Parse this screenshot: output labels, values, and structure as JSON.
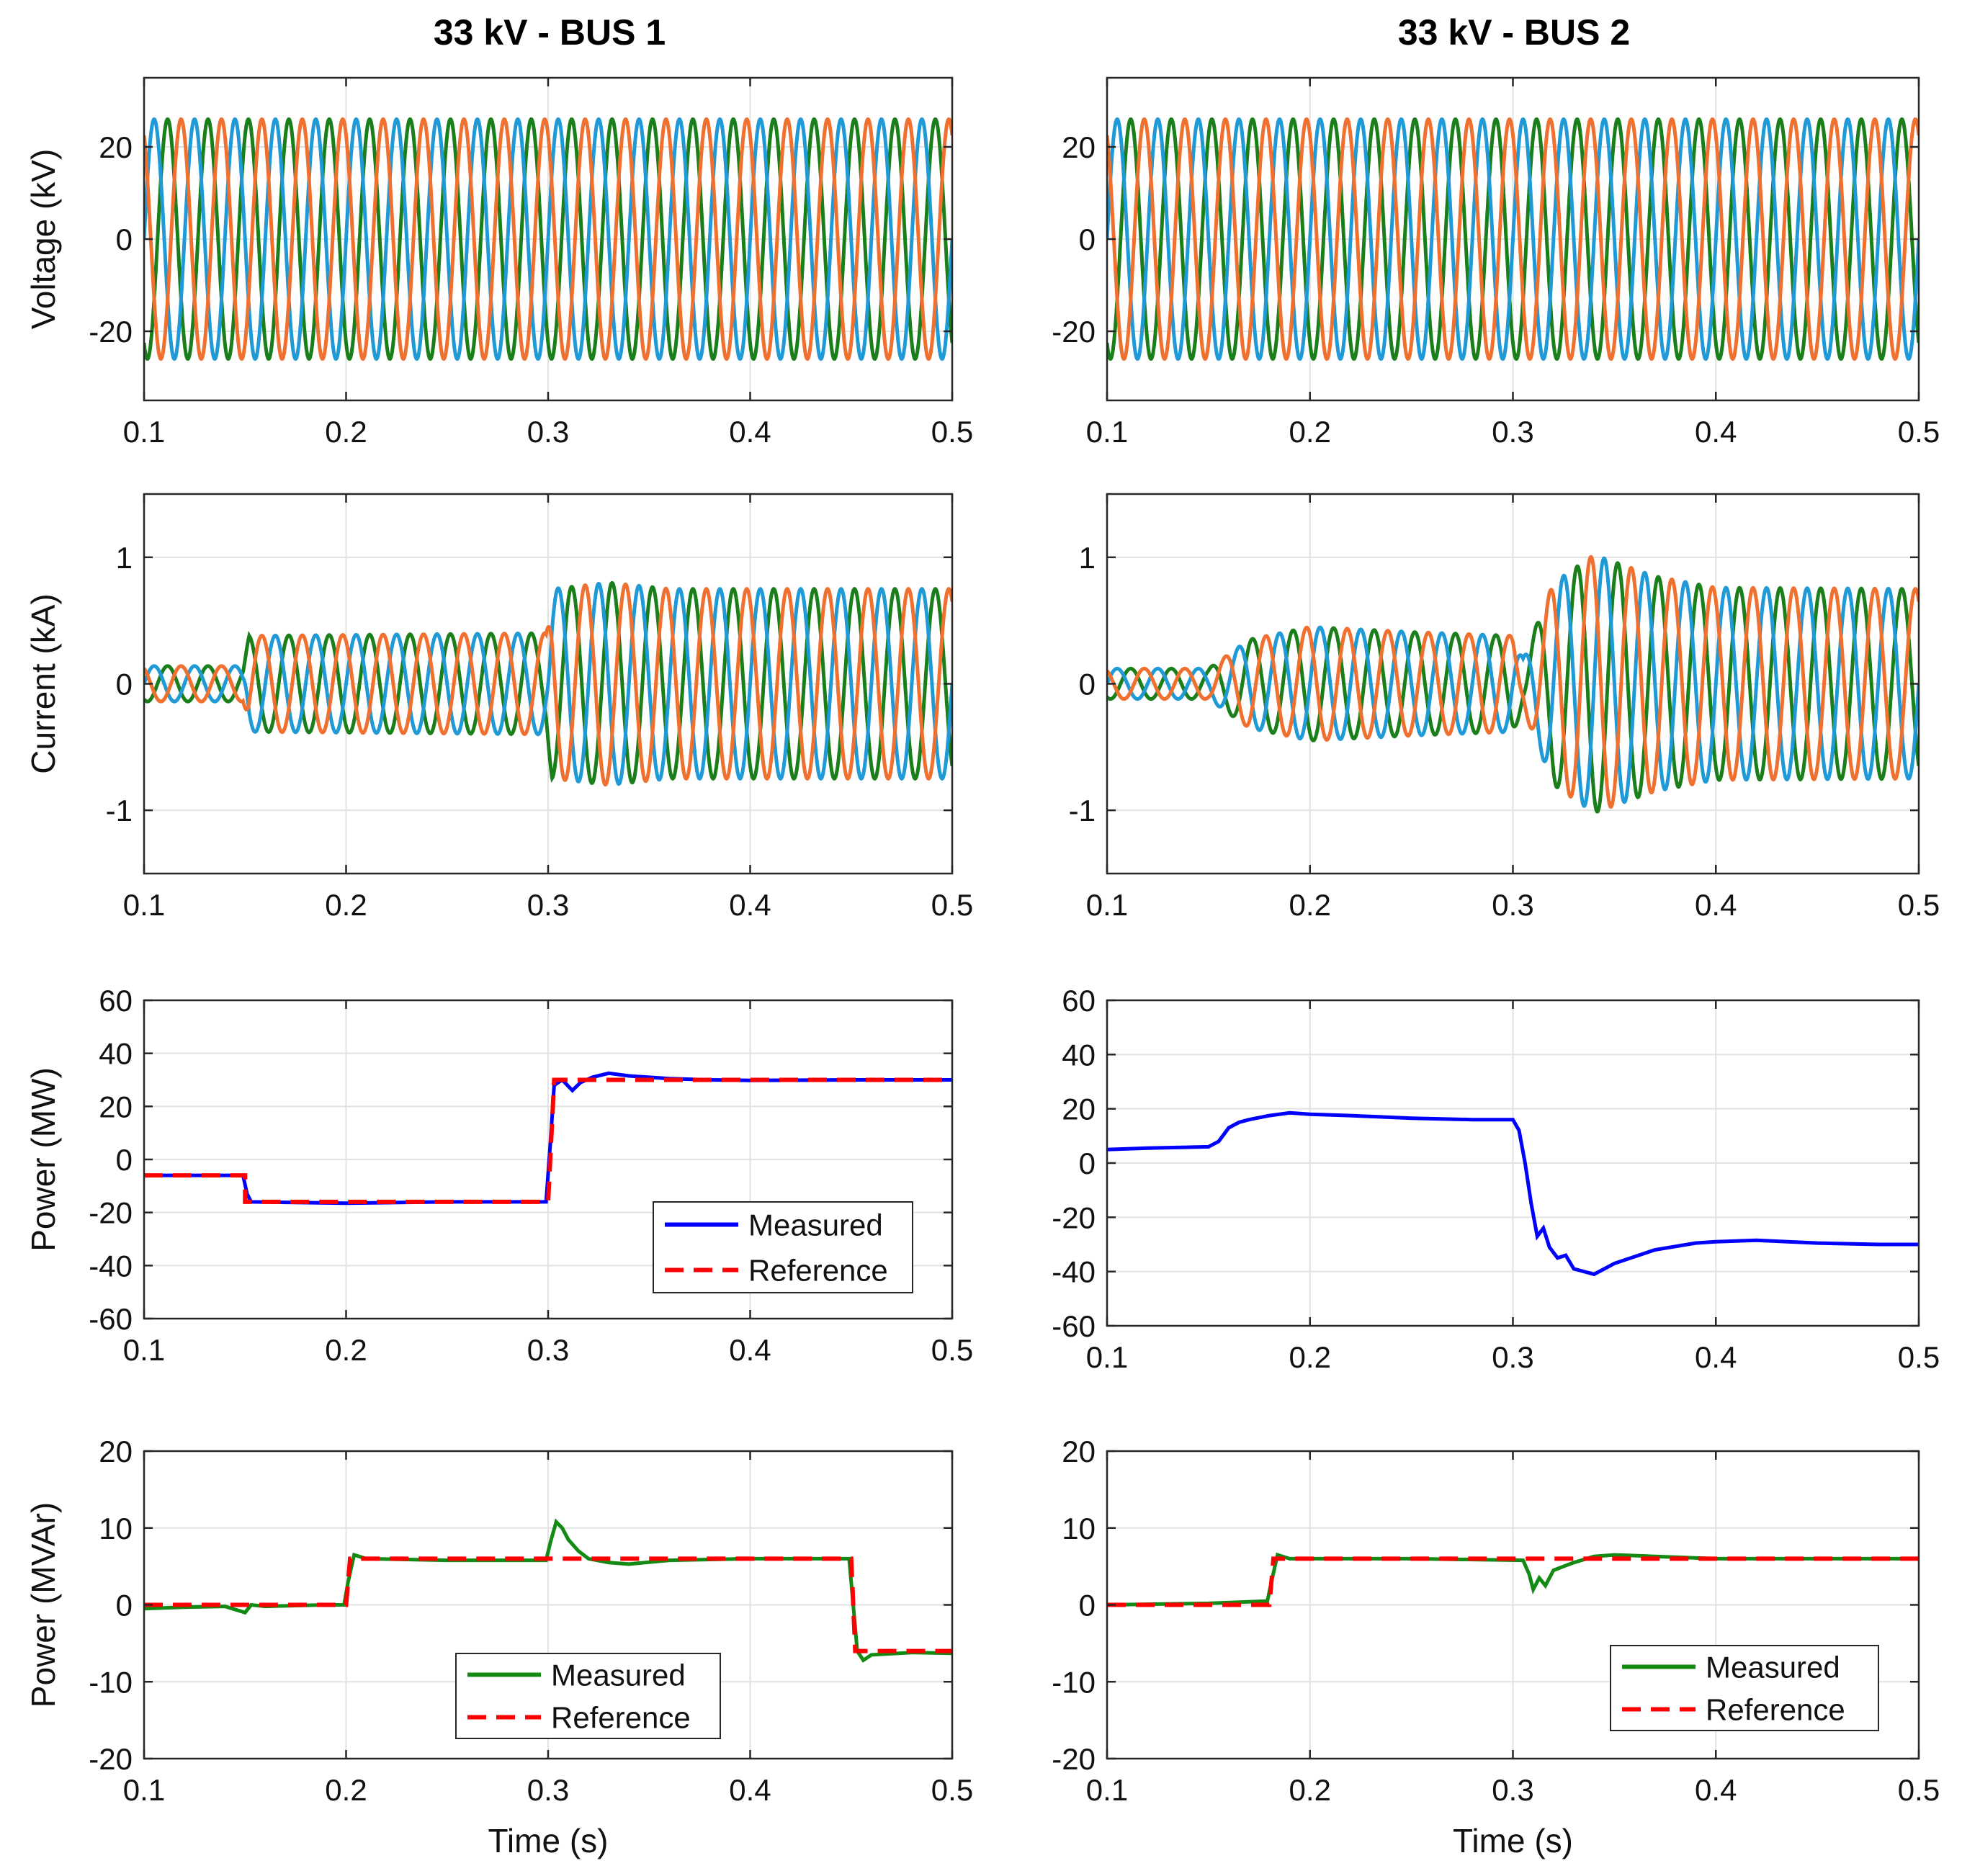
{
  "chart_data": [
    {
      "id": "v1",
      "type": "line",
      "column_title": "33 kV - BUS 1",
      "xlabel": "",
      "ylabel": "Voltage (kV)",
      "xlim": [
        0.1,
        0.5
      ],
      "ylim": [
        -35,
        35
      ],
      "xticks": [
        "0.1",
        "0.2",
        "0.3",
        "0.4",
        "0.5"
      ],
      "yticks": [
        "-20",
        "0",
        "20"
      ],
      "grid": true,
      "waveform": {
        "phases": [
          "#1f9ad6",
          "#f07030",
          "#1a7f1a"
        ],
        "frequency_hz": 50,
        "envelope_t": [
          0.1,
          0.5
        ],
        "envelope_a": [
          26,
          26
        ]
      }
    },
    {
      "id": "v2",
      "type": "line",
      "column_title": "33 kV - BUS 2",
      "xlabel": "",
      "ylabel": "",
      "xlim": [
        0.1,
        0.5
      ],
      "ylim": [
        -35,
        35
      ],
      "xticks": [
        "0.1",
        "0.2",
        "0.3",
        "0.4",
        "0.5"
      ],
      "yticks": [
        "-20",
        "0",
        "20"
      ],
      "grid": true,
      "waveform": {
        "phases": [
          "#1f9ad6",
          "#f07030",
          "#1a7f1a"
        ],
        "frequency_hz": 50,
        "envelope_t": [
          0.1,
          0.5
        ],
        "envelope_a": [
          26,
          26
        ]
      }
    },
    {
      "id": "i1",
      "type": "line",
      "xlabel": "",
      "ylabel": "Current (kA)",
      "xlim": [
        0.1,
        0.5
      ],
      "ylim": [
        -1.5,
        1.5
      ],
      "xticks": [
        "0.1",
        "0.2",
        "0.3",
        "0.4",
        "0.5"
      ],
      "yticks": [
        "-1",
        "0",
        "1"
      ],
      "grid": true,
      "waveform": {
        "phases": [
          "#1f9ad6",
          "#f07030",
          "#1a7f1a"
        ],
        "frequency_hz": 50,
        "envelope_t": [
          0.1,
          0.149,
          0.152,
          0.299,
          0.302,
          0.33,
          0.36,
          0.5
        ],
        "envelope_a": [
          0.14,
          0.14,
          0.38,
          0.4,
          0.75,
          0.8,
          0.75,
          0.75
        ]
      }
    },
    {
      "id": "i2",
      "type": "line",
      "xlabel": "",
      "ylabel": "",
      "xlim": [
        0.1,
        0.5
      ],
      "ylim": [
        -1.5,
        1.5
      ],
      "xticks": [
        "0.1",
        "0.2",
        "0.3",
        "0.4",
        "0.5"
      ],
      "yticks": [
        "-1",
        "0",
        "1"
      ],
      "grid": true,
      "waveform": {
        "phases": [
          "#1f9ad6",
          "#f07030",
          "#1a7f1a"
        ],
        "frequency_hz": 50,
        "envelope_t": [
          0.1,
          0.15,
          0.17,
          0.2,
          0.25,
          0.3,
          0.305,
          0.32,
          0.34,
          0.37,
          0.4,
          0.5
        ],
        "envelope_a": [
          0.12,
          0.12,
          0.35,
          0.45,
          0.41,
          0.38,
          0.2,
          0.8,
          1.02,
          0.85,
          0.76,
          0.75
        ]
      }
    },
    {
      "id": "p1",
      "type": "line",
      "xlabel": "",
      "ylabel": "Power (MW)",
      "xlim": [
        0.1,
        0.5
      ],
      "ylim": [
        -60,
        60
      ],
      "xticks": [
        "0.1",
        "0.2",
        "0.3",
        "0.4",
        "0.5"
      ],
      "yticks": [
        "-60",
        "-40",
        "-20",
        "0",
        "20",
        "40",
        "60"
      ],
      "grid": true,
      "series": [
        {
          "name": "Measured",
          "color": "#0000ff",
          "style": "solid",
          "x": [
            0.1,
            0.149,
            0.151,
            0.153,
            0.2,
            0.25,
            0.299,
            0.301,
            0.303,
            0.307,
            0.312,
            0.316,
            0.322,
            0.33,
            0.34,
            0.36,
            0.38,
            0.4,
            0.45,
            0.5
          ],
          "y": [
            -6,
            -6,
            -13,
            -16,
            -16.5,
            -16,
            -16,
            5,
            28,
            30,
            26,
            29,
            31,
            32.5,
            31.5,
            30.5,
            30,
            29.8,
            30,
            30
          ]
        },
        {
          "name": "Reference",
          "color": "#ff0000",
          "style": "dashed",
          "x": [
            0.1,
            0.15,
            0.15,
            0.3,
            0.303,
            0.5
          ],
          "y": [
            -6,
            -6,
            -16,
            -16,
            30,
            30
          ]
        }
      ],
      "legend": {
        "position": "bottom-right",
        "entries": [
          "Measured",
          "Reference"
        ]
      }
    },
    {
      "id": "p2",
      "type": "line",
      "xlabel": "",
      "ylabel": "",
      "xlim": [
        0.1,
        0.5
      ],
      "ylim": [
        -60,
        60
      ],
      "xticks": [
        "0.1",
        "0.2",
        "0.3",
        "0.4",
        "0.5"
      ],
      "yticks": [
        "-60",
        "-40",
        "-20",
        "0",
        "20",
        "40",
        "60"
      ],
      "grid": true,
      "series": [
        {
          "name": "Measured",
          "color": "#0000ff",
          "style": "solid",
          "x": [
            0.1,
            0.12,
            0.15,
            0.155,
            0.16,
            0.165,
            0.17,
            0.18,
            0.19,
            0.2,
            0.22,
            0.25,
            0.28,
            0.3,
            0.303,
            0.306,
            0.309,
            0.312,
            0.315,
            0.318,
            0.322,
            0.326,
            0.33,
            0.34,
            0.35,
            0.37,
            0.39,
            0.4,
            0.42,
            0.45,
            0.48,
            0.5
          ],
          "y": [
            5,
            5.5,
            6,
            8,
            13,
            15,
            16,
            17.5,
            18.5,
            18,
            17.5,
            16.5,
            16,
            16,
            12,
            0,
            -15,
            -27,
            -24,
            -31,
            -35,
            -34,
            -39,
            -41,
            -37,
            -32,
            -29.5,
            -29,
            -28.5,
            -29.5,
            -30,
            -30
          ]
        }
      ]
    },
    {
      "id": "q1",
      "type": "line",
      "xlabel": "Time (s)",
      "ylabel": "Power (MVAr)",
      "xlim": [
        0.1,
        0.5
      ],
      "ylim": [
        -20,
        20
      ],
      "xticks": [
        "0.1",
        "0.2",
        "0.3",
        "0.4",
        "0.5"
      ],
      "yticks": [
        "-20",
        "-10",
        "0",
        "10",
        "20"
      ],
      "grid": true,
      "series": [
        {
          "name": "Measured",
          "color": "#138a13",
          "style": "solid",
          "x": [
            0.1,
            0.12,
            0.14,
            0.15,
            0.153,
            0.16,
            0.19,
            0.199,
            0.201,
            0.204,
            0.21,
            0.25,
            0.299,
            0.301,
            0.304,
            0.307,
            0.31,
            0.315,
            0.32,
            0.33,
            0.34,
            0.36,
            0.4,
            0.449,
            0.451,
            0.453,
            0.456,
            0.46,
            0.48,
            0.5
          ],
          "y": [
            -0.5,
            -0.3,
            -0.2,
            -1,
            0,
            -0.2,
            0,
            0,
            3,
            6.5,
            6,
            5.8,
            5.8,
            8,
            10.8,
            10,
            8.5,
            7,
            6,
            5.5,
            5.3,
            5.8,
            6,
            6,
            0,
            -6,
            -7.2,
            -6.5,
            -6.2,
            -6.3
          ]
        },
        {
          "name": "Reference",
          "color": "#ff0000",
          "style": "dashed",
          "x": [
            0.1,
            0.2,
            0.202,
            0.45,
            0.452,
            0.5
          ],
          "y": [
            0,
            0,
            6,
            6,
            -6,
            -6
          ]
        }
      ],
      "legend": {
        "position": "bottom-center",
        "entries": [
          "Measured",
          "Reference"
        ]
      }
    },
    {
      "id": "q2",
      "type": "line",
      "xlabel": "Time (s)",
      "ylabel": "",
      "xlim": [
        0.1,
        0.5
      ],
      "ylim": [
        -20,
        20
      ],
      "xticks": [
        "0.1",
        "0.2",
        "0.3",
        "0.4",
        "0.5"
      ],
      "yticks": [
        "-20",
        "-10",
        "0",
        "10",
        "20"
      ],
      "grid": true,
      "series": [
        {
          "name": "Measured",
          "color": "#138a13",
          "style": "solid",
          "x": [
            0.1,
            0.15,
            0.179,
            0.181,
            0.184,
            0.19,
            0.25,
            0.305,
            0.308,
            0.31,
            0.313,
            0.316,
            0.32,
            0.325,
            0.33,
            0.34,
            0.35,
            0.37,
            0.4,
            0.45,
            0.5
          ],
          "y": [
            0,
            0.2,
            0.5,
            3,
            6.5,
            6,
            6,
            5.8,
            4,
            2,
            3.5,
            2.5,
            4.5,
            5,
            5.5,
            6.3,
            6.5,
            6.3,
            6,
            6,
            6
          ]
        },
        {
          "name": "Reference",
          "color": "#ff0000",
          "style": "dashed",
          "x": [
            0.1,
            0.18,
            0.182,
            0.5
          ],
          "y": [
            0,
            0,
            6,
            6
          ]
        }
      ],
      "legend": {
        "position": "bottom-right",
        "entries": [
          "Measured",
          "Reference"
        ]
      }
    }
  ]
}
